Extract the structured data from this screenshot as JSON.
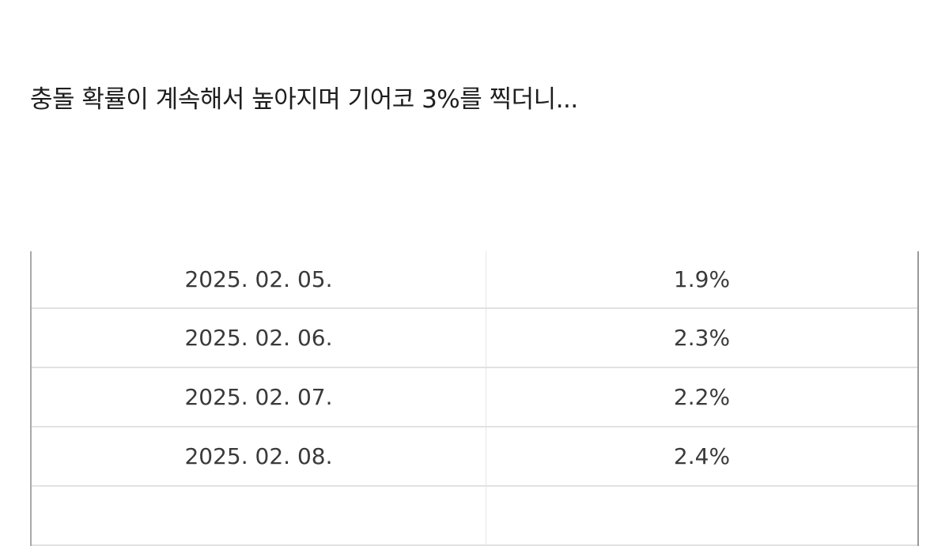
{
  "title": "충돌 확률이 계속해서 높아지며 기어코 3%를 찍더니...",
  "rows": [
    {
      "date": "2025. 02. 05.",
      "value": "1.9%"
    },
    {
      "date": "2025. 02. 06.",
      "value": "2.3%"
    },
    {
      "date": "2025. 02. 07.",
      "value": "2.2%"
    },
    {
      "date": "2025. 02. 08.",
      "value": "2.4%"
    }
  ]
}
